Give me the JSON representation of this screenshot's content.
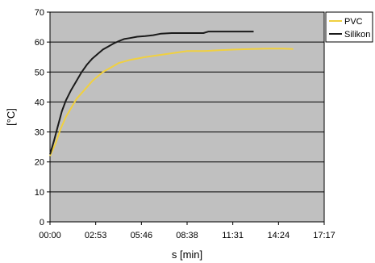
{
  "chart_data": {
    "type": "line",
    "title": "",
    "xlabel": "s [min]",
    "ylabel": "[°C]",
    "x_ticks": [
      "00:00",
      "02:53",
      "05:46",
      "08:38",
      "11:31",
      "14:24",
      "17:17"
    ],
    "x_range_seconds": [
      0,
      1037
    ],
    "ylim": [
      0,
      70
    ],
    "y_ticks": [
      "0",
      "10",
      "20",
      "30",
      "40",
      "50",
      "60",
      "70"
    ],
    "grid": "horizontal",
    "legend_position": "right-top",
    "plot_background": "#c0c0c0",
    "series": [
      {
        "name": "PVC",
        "color": "#f0d040",
        "points": [
          [
            0,
            22
          ],
          [
            20,
            26
          ],
          [
            40,
            31
          ],
          [
            60,
            35
          ],
          [
            80,
            38
          ],
          [
            100,
            41
          ],
          [
            120,
            43
          ],
          [
            140,
            45
          ],
          [
            160,
            47
          ],
          [
            180,
            48.5
          ],
          [
            200,
            50
          ],
          [
            220,
            51
          ],
          [
            240,
            52
          ],
          [
            260,
            53
          ],
          [
            280,
            53.5
          ],
          [
            300,
            54
          ],
          [
            330,
            54.5
          ],
          [
            360,
            55
          ],
          [
            400,
            55.5
          ],
          [
            440,
            56
          ],
          [
            480,
            56.5
          ],
          [
            520,
            57
          ],
          [
            580,
            57
          ],
          [
            640,
            57.3
          ],
          [
            700,
            57.5
          ],
          [
            760,
            57.7
          ],
          [
            820,
            57.8
          ],
          [
            880,
            57.8
          ],
          [
            920,
            57.7
          ]
        ]
      },
      {
        "name": "Silikon",
        "color": "#1a1a1a",
        "points": [
          [
            0,
            22.5
          ],
          [
            15,
            27
          ],
          [
            30,
            32
          ],
          [
            45,
            37
          ],
          [
            60,
            40.5
          ],
          [
            80,
            44
          ],
          [
            100,
            47
          ],
          [
            120,
            50
          ],
          [
            140,
            52.5
          ],
          [
            160,
            54.5
          ],
          [
            180,
            56
          ],
          [
            200,
            57.5
          ],
          [
            220,
            58.5
          ],
          [
            240,
            59.5
          ],
          [
            260,
            60.3
          ],
          [
            280,
            61
          ],
          [
            300,
            61.3
          ],
          [
            330,
            61.8
          ],
          [
            360,
            62
          ],
          [
            390,
            62.3
          ],
          [
            420,
            62.8
          ],
          [
            460,
            63
          ],
          [
            520,
            63
          ],
          [
            580,
            63
          ],
          [
            600,
            63.5
          ],
          [
            660,
            63.5
          ],
          [
            720,
            63.5
          ],
          [
            770,
            63.5
          ]
        ]
      }
    ]
  }
}
